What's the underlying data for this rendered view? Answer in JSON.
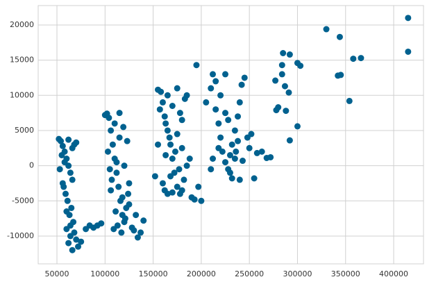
{
  "chart_data": {
    "type": "scatter",
    "color": "#00618f",
    "grid": true,
    "xlim": [
      30500,
      431000
    ],
    "ylim": [
      -13950,
      22760
    ],
    "xticks": [
      50000,
      100000,
      150000,
      200000,
      250000,
      300000,
      350000,
      400000
    ],
    "yticks": [
      -10000,
      -5000,
      0,
      5000,
      10000,
      15000,
      20000
    ],
    "x": [
      52000,
      54000,
      56000,
      58000,
      60000,
      62000,
      64000,
      66000,
      68000,
      53000,
      57000,
      61000,
      65000,
      55000,
      59000,
      63000,
      67000,
      56000,
      60000,
      64000,
      58000,
      62000,
      66000,
      60000,
      64000,
      68000,
      70000,
      72000,
      75000,
      80000,
      84000,
      88000,
      62000,
      66000,
      70000,
      100000,
      102000,
      104000,
      106000,
      108000,
      110000,
      112000,
      114000,
      116000,
      118000,
      120000,
      122000,
      124000,
      103000,
      107000,
      111000,
      115000,
      119000,
      123000,
      105000,
      109000,
      113000,
      117000,
      121000,
      125000,
      128000,
      130000,
      132000,
      134000,
      110000,
      115000,
      120000,
      125000,
      118000,
      112000,
      106000,
      140000,
      137000,
      96000,
      92000,
      155000,
      158000,
      160000,
      162000,
      165000,
      168000,
      170000,
      172000,
      175000,
      178000,
      180000,
      182000,
      185000,
      157000,
      163000,
      167000,
      173000,
      177000,
      183000,
      160000,
      165000,
      170000,
      175000,
      180000,
      155000,
      163000,
      168000,
      178000,
      185000,
      190000,
      193000,
      197000,
      200000,
      152000,
      175000,
      170000,
      165000,
      180000,
      162000,
      188000,
      205000,
      210000,
      212000,
      215000,
      218000,
      220000,
      222000,
      225000,
      228000,
      230000,
      232000,
      235000,
      238000,
      240000,
      242000,
      245000,
      248000,
      250000,
      215000,
      220000,
      225000,
      230000,
      235000,
      240000,
      210000,
      218000,
      228000,
      238000,
      232000,
      225000,
      212000,
      243000,
      252000,
      258000,
      236000,
      415000,
      415000,
      330000,
      344000,
      366000,
      358000,
      342000,
      345000,
      354000,
      300000,
      292000,
      300000,
      303000,
      285000,
      284000,
      284000,
      292000,
      277000,
      280000,
      278000,
      287000,
      291000,
      288000,
      268000,
      263000,
      255000,
      195000,
      272000
    ],
    "values": [
      3800,
      3500,
      2800,
      2000,
      1000,
      0,
      -1000,
      -2000,
      3000,
      -500,
      -3000,
      -5000,
      -6000,
      1500,
      -4000,
      -7000,
      -8000,
      -2500,
      -9000,
      -10000,
      500,
      -11000,
      -12000,
      -6500,
      -8500,
      -9500,
      -10500,
      -11500,
      -10800,
      -9000,
      -8500,
      -8800,
      3700,
      2500,
      3300,
      7200,
      7400,
      6800,
      5000,
      3000,
      1000,
      -1000,
      -3000,
      -5000,
      -7000,
      -8000,
      -6000,
      -4000,
      2000,
      -2000,
      -6500,
      7500,
      5500,
      3500,
      -500,
      -9000,
      -8500,
      -9500,
      -7500,
      -5500,
      -8800,
      -9200,
      -7000,
      -10200,
      6000,
      4000,
      0,
      -2500,
      -4500,
      500,
      -3500,
      -7800,
      -9500,
      -8200,
      -8500,
      10800,
      10500,
      9000,
      7000,
      5000,
      3000,
      1000,
      -1000,
      -3000,
      -4000,
      -3500,
      -2000,
      0,
      8000,
      6000,
      4000,
      2000,
      -500,
      9500,
      -2500,
      -4000,
      -3800,
      11000,
      6500,
      3000,
      1500,
      -1500,
      7500,
      10000,
      -4500,
      -4800,
      -3000,
      -5000,
      -1500,
      4500,
      8500,
      10000,
      2500,
      -3500,
      1000,
      9000,
      11000,
      13000,
      8000,
      6000,
      4000,
      2000,
      500,
      -500,
      1500,
      3000,
      5000,
      7000,
      9000,
      11500,
      12500,
      4000,
      2500,
      12000,
      10000,
      7500,
      -1000,
      1000,
      -2000,
      -500,
      2500,
      6500,
      3500,
      -1800,
      13000,
      1000,
      700,
      4500,
      1800,
      2000,
      21000,
      16200,
      19400,
      18300,
      15300,
      15200,
      12800,
      12900,
      9200,
      5600,
      3600,
      14600,
      14200,
      16000,
      14300,
      13000,
      15800,
      12100,
      8300,
      7900,
      11300,
      10400,
      7800,
      1100,
      2000,
      -1800,
      14300,
      1200
    ]
  }
}
